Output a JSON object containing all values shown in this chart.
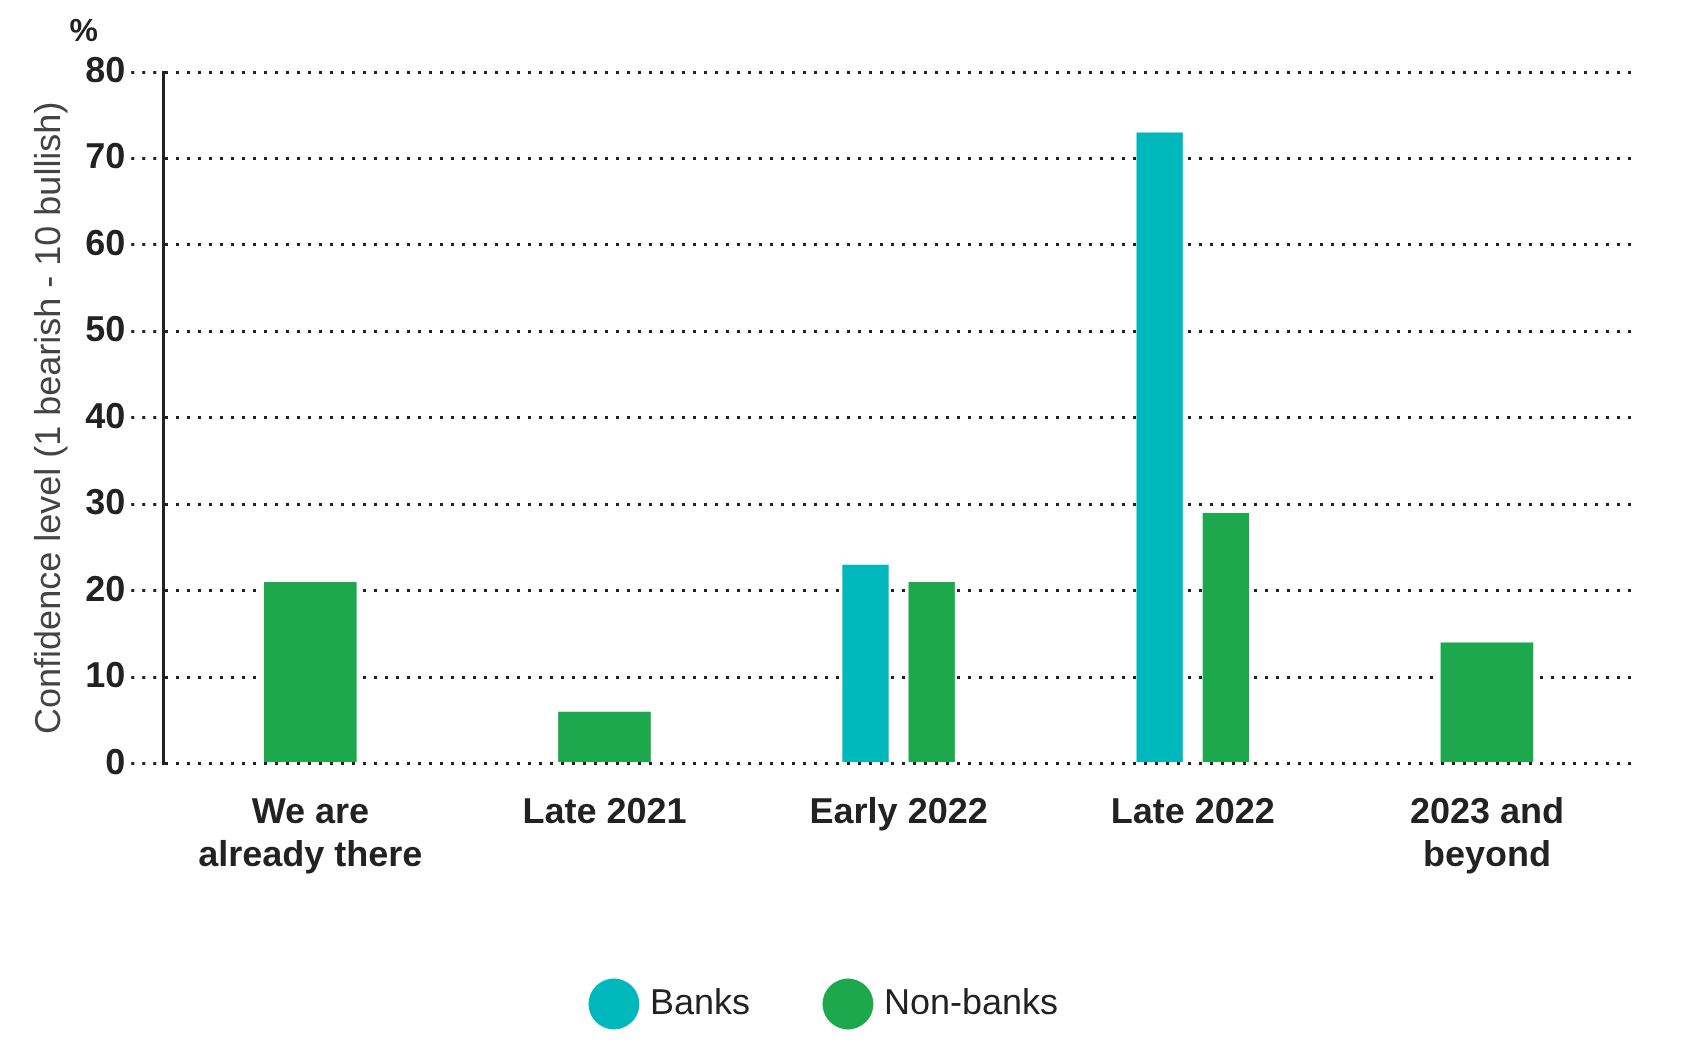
{
  "chart_data": {
    "type": "bar",
    "ylabel": "Confidence level (1 bearish - 10 bullish)",
    "annotations": [
      "%"
    ],
    "categories": [
      "We are already there",
      "Late 2021",
      "Early 2022",
      "Late 2022",
      "2023 and beyond"
    ],
    "series": [
      {
        "name": "Banks",
        "color": "#00b8bb",
        "values": [
          null,
          null,
          23,
          73,
          null
        ]
      },
      {
        "name": "Non-banks",
        "color": "#1ea84e",
        "values": [
          21,
          6,
          21,
          29,
          14
        ]
      }
    ],
    "ylim": [
      0,
      80
    ],
    "yticks": [
      0,
      10,
      20,
      30,
      40,
      50,
      60,
      70,
      80
    ],
    "grid": "y",
    "legend": "bottom"
  }
}
